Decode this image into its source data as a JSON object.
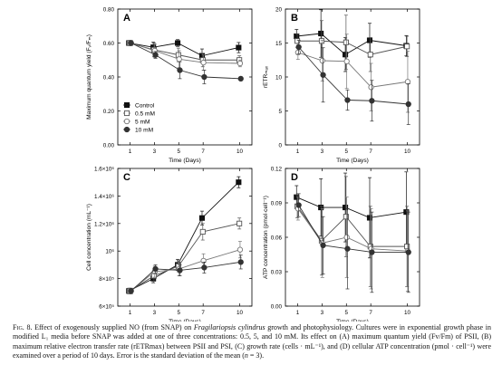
{
  "chart_data": [
    {
      "type": "line",
      "panel": "A",
      "xlabel": "Time (Days)",
      "ylabel": "Maximum quantum yield (Fᵥ/Fₘ)",
      "x": [
        1,
        3,
        5,
        7,
        10
      ],
      "xticks": [
        "1",
        "3",
        "5",
        "7",
        "10"
      ],
      "xlim": [
        0,
        11
      ],
      "ylim": [
        0,
        0.8
      ],
      "yticks": [
        "0.00",
        "0.20",
        "0.40",
        "0.60",
        "0.80"
      ],
      "ytick_values": [
        0,
        0.2,
        0.4,
        0.6,
        0.8
      ],
      "series": [
        {
          "name": "Control",
          "marker": "square-filled",
          "values": [
            0.6,
            0.575,
            0.6,
            0.525,
            0.573
          ],
          "errors": [
            0.015,
            0.03,
            0.02,
            0.04,
            0.03
          ]
        },
        {
          "name": "0.5 mM",
          "marker": "square-open",
          "values": [
            0.6,
            0.56,
            0.53,
            0.5,
            0.5
          ],
          "errors": [
            0.015,
            0.04,
            0.04,
            0.04,
            0.025
          ]
        },
        {
          "name": "5 mM",
          "marker": "circle-open",
          "values": [
            0.6,
            0.555,
            0.505,
            0.485,
            0.48
          ],
          "errors": [
            0.015,
            0.04,
            0.05,
            0.045,
            0.02
          ]
        },
        {
          "name": "10 mM",
          "marker": "circle-filled",
          "values": [
            0.6,
            0.53,
            0.44,
            0.4,
            0.39
          ],
          "errors": [
            0.015,
            0.02,
            0.05,
            0.04,
            0.01
          ]
        }
      ],
      "legend": "bottom-left"
    },
    {
      "type": "line",
      "panel": "B",
      "xlabel": "Time (Days)",
      "ylabel": "rETRₘₐₓ",
      "x": [
        1,
        3,
        5,
        7,
        10
      ],
      "xticks": [
        "1",
        "3",
        "5",
        "7",
        "10"
      ],
      "xlim": [
        0,
        11
      ],
      "ylim": [
        0,
        20
      ],
      "yticks": [
        "0",
        "5",
        "10",
        "15",
        "20"
      ],
      "ytick_values": [
        0,
        5,
        10,
        15,
        20
      ],
      "series": [
        {
          "name": "Control",
          "marker": "square-filled",
          "values": [
            16,
            16.4,
            13.3,
            15.4,
            14.6
          ],
          "errors": [
            1.0,
            3.5,
            2.5,
            2.5,
            1.5
          ]
        },
        {
          "name": "0.5 mM",
          "marker": "square-open",
          "values": [
            15.3,
            15.3,
            15.1,
            13.3,
            14.5
          ],
          "errors": [
            1.0,
            3.0,
            4.0,
            2.5,
            1.5
          ]
        },
        {
          "name": "5 mM",
          "marker": "circle-open",
          "values": [
            13.6,
            12.4,
            12.3,
            8.5,
            9.3
          ],
          "errors": [
            1.0,
            3.0,
            4.0,
            3.5,
            4.5
          ]
        },
        {
          "name": "10 mM",
          "marker": "circle-filled",
          "values": [
            14.4,
            10.3,
            6.6,
            6.5,
            6.0
          ],
          "errors": [
            1.0,
            4.0,
            1.5,
            3.0,
            3.0
          ]
        }
      ]
    },
    {
      "type": "line",
      "panel": "C",
      "xlabel": "Time (Days)",
      "ylabel": "Cell concentration (mL⁻¹)",
      "x": [
        1,
        3,
        5,
        7,
        10
      ],
      "xticks": [
        "1",
        "3",
        "5",
        "7",
        "10"
      ],
      "xlim": [
        0,
        11
      ],
      "ylim": [
        600000,
        1600000
      ],
      "yticks": [
        "6×10⁵",
        "8×10⁵",
        "10⁶",
        "1.2×10⁶",
        "1.4×10⁶",
        "1.6×10⁶"
      ],
      "ytick_values": [
        600000,
        800000,
        1000000,
        1200000,
        1400000,
        1600000
      ],
      "series": [
        {
          "name": "Control",
          "marker": "square-filled",
          "values": [
            710000,
            800000,
            900000,
            1240000,
            1500000
          ],
          "errors": [
            20000,
            30000,
            40000,
            50000,
            40000
          ]
        },
        {
          "name": "0.5 mM",
          "marker": "square-open",
          "values": [
            710000,
            820000,
            890000,
            1140000,
            1200000
          ],
          "errors": [
            20000,
            40000,
            40000,
            60000,
            40000
          ]
        },
        {
          "name": "5 mM",
          "marker": "circle-open",
          "values": [
            710000,
            850000,
            870000,
            930000,
            1010000
          ],
          "errors": [
            20000,
            40000,
            50000,
            50000,
            60000
          ]
        },
        {
          "name": "10 mM",
          "marker": "circle-filled",
          "values": [
            710000,
            870000,
            860000,
            880000,
            920000
          ],
          "errors": [
            20000,
            30000,
            40000,
            40000,
            50000
          ]
        }
      ]
    },
    {
      "type": "line",
      "panel": "D",
      "xlabel": "Time (Days)",
      "ylabel": "ATP concentration (pmol·cell⁻¹)",
      "x": [
        1,
        3,
        5,
        7,
        10
      ],
      "xticks": [
        "1",
        "3",
        "5",
        "7",
        "10"
      ],
      "xlim": [
        0,
        11
      ],
      "ylim": [
        0,
        0.12
      ],
      "yticks": [
        "0.00",
        "0.03",
        "0.06",
        "0.09",
        "0.12"
      ],
      "ytick_values": [
        0,
        0.03,
        0.06,
        0.09,
        0.12
      ],
      "series": [
        {
          "name": "Control",
          "marker": "square-filled",
          "values": [
            0.095,
            0.086,
            0.086,
            0.077,
            0.082
          ],
          "errors": [
            0.01,
            0.025,
            0.03,
            0.035,
            0.035
          ]
        },
        {
          "name": "0.5 mM",
          "marker": "square-open",
          "values": [
            0.087,
            0.057,
            0.078,
            0.052,
            0.052
          ],
          "errors": [
            0.01,
            0.03,
            0.035,
            0.035,
            0.035
          ]
        },
        {
          "name": "5 mM",
          "marker": "circle-open",
          "values": [
            0.085,
            0.055,
            0.06,
            0.05,
            0.048
          ],
          "errors": [
            0.01,
            0.03,
            0.035,
            0.035,
            0.035
          ]
        },
        {
          "name": "10 mM",
          "marker": "circle-filled",
          "values": [
            0.088,
            0.053,
            0.05,
            0.047,
            0.047
          ],
          "errors": [
            0.01,
            0.025,
            0.035,
            0.035,
            0.035
          ]
        }
      ]
    }
  ],
  "caption": {
    "label": "Fig. 8.",
    "text_1": "Effect of exogenously supplied NO (from SNAP) on ",
    "species": "Fragilariopsis cylindrus",
    "text_2": " growth and photophysiology. Cultures were in exponential growth phase in modified L₁ media before SNAP was added at one of three concentrations: 0.5, 5, and 10 mM. Its effect on (A) maximum quantum yield (Fv/Fm) of PSII, (B) maximum relative electron transfer rate (rETRmax) between PSII and PSI, (C) growth rate (cells · mL⁻¹), and (D) cellular ATP concentration (pmol · cell⁻¹) were examined over a period of 10 days. Error is the standard deviation of the mean (",
    "n_value": "n",
    "text_3": " = 3)."
  }
}
